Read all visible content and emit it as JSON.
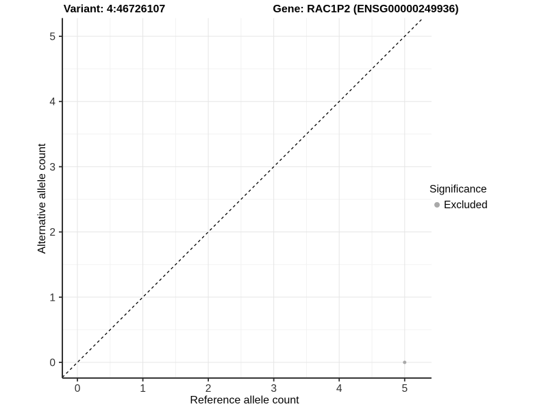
{
  "window": {
    "background": "#ffffff"
  },
  "chart_data": {
    "type": "scatter",
    "title_left": "Variant: 4:46726107",
    "title_right": "Gene: RAC1P2 (ENSG00000249936)",
    "xlabel": "Reference allele count",
    "ylabel": "Alternative allele count",
    "xlim": [
      -0.23,
      5.41
    ],
    "ylim": [
      -0.24,
      5.28
    ],
    "x_ticks": [
      0,
      1,
      2,
      3,
      4,
      5
    ],
    "y_ticks": [
      0,
      1,
      2,
      3,
      4,
      5
    ],
    "grid": {
      "major": true,
      "minor": true,
      "minor_step": 0.5
    },
    "reference_line": {
      "kind": "identity y=x",
      "style": "dashed",
      "color": "#000000"
    },
    "series": [
      {
        "name": "Excluded",
        "color": "#a9a9a9",
        "points": [
          [
            5,
            0
          ]
        ]
      }
    ],
    "legend": {
      "title": "Significance",
      "position": "right",
      "entries": [
        {
          "label": "Excluded",
          "color": "#a9a9a9",
          "marker": "circle"
        }
      ]
    }
  },
  "colors": {
    "grid_major": "#e5e5e5",
    "grid_minor": "#f2f2f2",
    "axis_line": "#2f2f2f",
    "tick_mark": "#2f2f2f",
    "tick_text": "#303030",
    "point": "#a9a9a9"
  }
}
